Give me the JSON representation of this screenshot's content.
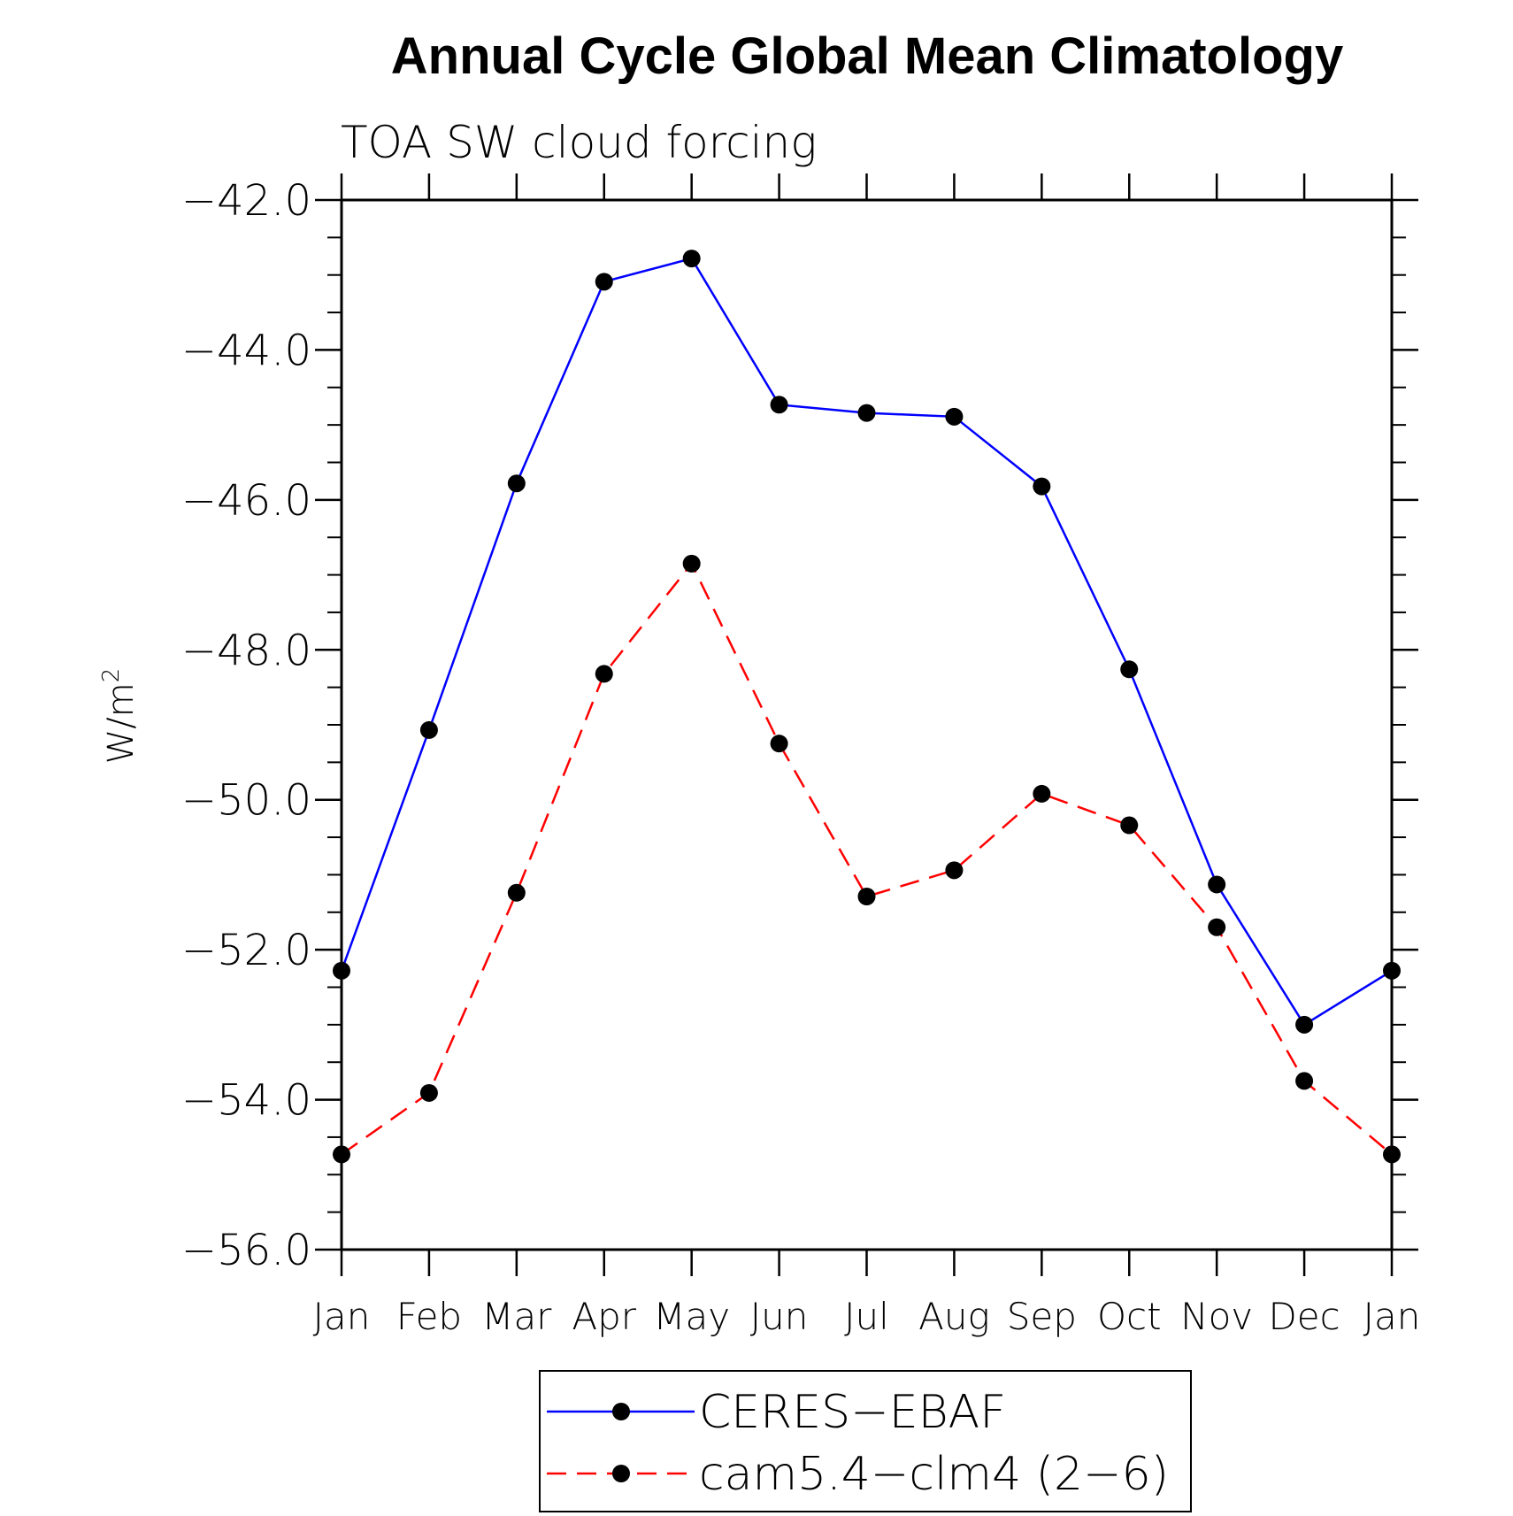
{
  "chart_data": {
    "type": "line",
    "title": "Annual Cycle Global Mean Climatology",
    "subtitle": "TOA SW cloud forcing",
    "ylabel": "W/m",
    "ylabel_superscript": "2",
    "xlabel": "",
    "ylim": [
      -56.0,
      -42.0
    ],
    "yticks": [
      -56.0,
      -54.0,
      -52.0,
      -50.0,
      -48.0,
      -46.0,
      -44.0,
      -42.0
    ],
    "ytick_labels": [
      "−56.0",
      "−54.0",
      "−52.0",
      "−50.0",
      "−48.0",
      "−46.0",
      "−44.0",
      "−42.0"
    ],
    "categories": [
      "Jan",
      "Feb",
      "Mar",
      "Apr",
      "May",
      "Jun",
      "Jul",
      "Aug",
      "Sep",
      "Oct",
      "Nov",
      "Dec",
      "Jan"
    ],
    "series": [
      {
        "name": "CERES−EBAF",
        "color": "#0000ff",
        "dash": "solid",
        "values": [
          -52.28,
          -49.07,
          -45.78,
          -43.09,
          -42.78,
          -44.73,
          -44.84,
          -44.89,
          -45.82,
          -48.26,
          -51.13,
          -53.0,
          -52.28
        ]
      },
      {
        "name": "cam5.4−clm4 (2−6)",
        "color": "#ff0000",
        "dash": "dashed",
        "values": [
          -54.73,
          -53.91,
          -51.24,
          -48.32,
          -46.85,
          -49.25,
          -51.29,
          -50.94,
          -49.92,
          -50.34,
          -51.7,
          -53.75,
          -54.73
        ]
      }
    ],
    "legend_position": "bottom-center",
    "grid": false
  }
}
